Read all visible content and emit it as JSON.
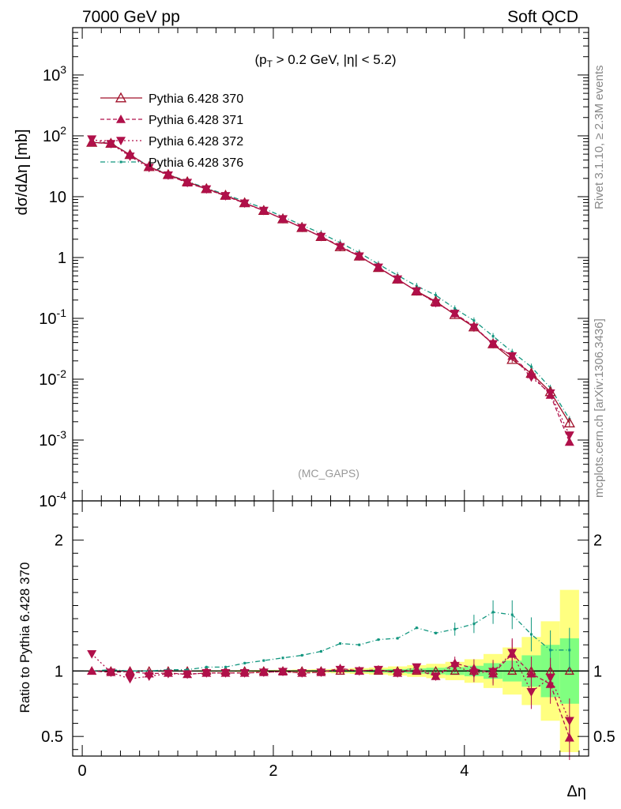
{
  "header": {
    "left": "7000 GeV pp",
    "right": "Soft QCD"
  },
  "side_labels": {
    "rivet": "Rivet 3.1.10, ≥ 2.3M events",
    "mcplots": "mcplots.cern.ch [arXiv:1306.3436]"
  },
  "colors": {
    "p370": "#a0102a",
    "p371": "#b0104a",
    "p372": "#b0104a",
    "p376": "#12967f",
    "band_outer": "#ffff80",
    "band_inner": "#80ff80"
  },
  "chart_data": [
    {
      "type": "line",
      "title": "(p_T > 0.2 GeV, |η| < 5.2)",
      "watermark": "(MC_GAPS)",
      "ylabel": "dσ/dΔη [mb]",
      "xlabel": "",
      "log_y": true,
      "xlim": [
        -0.1,
        5.3
      ],
      "ylim": [
        0.0001,
        6000
      ],
      "y_ticks": [
        "10^-4",
        "10^-3",
        "10^-2",
        "10^-1",
        "1",
        "10",
        "10^2",
        "10^3"
      ],
      "legend_position": "top-left",
      "x": [
        0.1,
        0.3,
        0.5,
        0.7,
        0.9,
        1.1,
        1.3,
        1.5,
        1.7,
        1.9,
        2.1,
        2.3,
        2.5,
        2.7,
        2.9,
        3.1,
        3.3,
        3.5,
        3.7,
        3.9,
        4.1,
        4.3,
        4.5,
        4.7,
        4.9,
        5.1
      ],
      "series": [
        {
          "name": "Pythia 6.428 370",
          "marker": "open-triangle-up",
          "line": "solid",
          "values": [
            78,
            75,
            49,
            31,
            23,
            17.5,
            13.5,
            10.5,
            7.9,
            5.9,
            4.3,
            3.1,
            2.2,
            1.5,
            1.05,
            0.68,
            0.44,
            0.28,
            0.19,
            0.115,
            0.072,
            0.038,
            0.021,
            0.0125,
            0.0062,
            0.0019
          ]
        },
        {
          "name": "Pythia 6.428 371",
          "marker": "filled-triangle-up",
          "line": "dashed",
          "values": [
            78,
            74,
            49,
            31,
            22.5,
            17,
            13.3,
            10.3,
            7.8,
            5.9,
            4.3,
            3.1,
            2.2,
            1.55,
            1.05,
            0.69,
            0.44,
            0.28,
            0.18,
            0.12,
            0.074,
            0.038,
            0.024,
            0.012,
            0.0055,
            0.00093
          ]
        },
        {
          "name": "Pythia 6.428 372",
          "marker": "filled-triangle-down",
          "line": "dotted",
          "values": [
            88,
            74,
            46,
            30,
            22.5,
            17,
            13.3,
            10.3,
            7.8,
            5.9,
            4.3,
            3.1,
            2.2,
            1.5,
            1.05,
            0.69,
            0.44,
            0.28,
            0.18,
            0.12,
            0.071,
            0.038,
            0.024,
            0.0108,
            0.0059,
            0.0012
          ]
        },
        {
          "name": "Pythia 6.428 376",
          "marker": "small-dot",
          "line": "dash-dot",
          "values": [
            78,
            76,
            49,
            31.5,
            23.3,
            17.8,
            13.9,
            10.8,
            8.4,
            6.4,
            4.7,
            3.4,
            2.5,
            1.75,
            1.2,
            0.78,
            0.51,
            0.34,
            0.24,
            0.145,
            0.092,
            0.051,
            0.028,
            0.016,
            0.0072,
            0.0022
          ]
        }
      ]
    },
    {
      "type": "line",
      "ylabel": "Ratio to Pythia 6.428 370",
      "xlabel": "Δη",
      "xlim": [
        -0.1,
        5.3
      ],
      "ylim": [
        0.35,
        2.3
      ],
      "x_ticks": [
        "0",
        "2",
        "4"
      ],
      "y_ticks": [
        "0.5",
        "1",
        "2"
      ],
      "x": [
        0.1,
        0.3,
        0.5,
        0.7,
        0.9,
        1.1,
        1.3,
        1.5,
        1.7,
        1.9,
        2.1,
        2.3,
        2.5,
        2.7,
        2.9,
        3.1,
        3.3,
        3.5,
        3.7,
        3.9,
        4.1,
        4.3,
        4.5,
        4.7,
        4.9,
        5.1
      ],
      "band": {
        "inner_half_width": [
          0.002,
          0.002,
          0.002,
          0.002,
          0.002,
          0.002,
          0.003,
          0.003,
          0.003,
          0.004,
          0.004,
          0.005,
          0.006,
          0.008,
          0.01,
          0.012,
          0.015,
          0.02,
          0.025,
          0.03,
          0.04,
          0.06,
          0.08,
          0.12,
          0.2,
          0.25
        ],
        "outer_half_width": [
          0.004,
          0.004,
          0.004,
          0.004,
          0.005,
          0.005,
          0.006,
          0.006,
          0.007,
          0.008,
          0.009,
          0.011,
          0.013,
          0.017,
          0.022,
          0.027,
          0.035,
          0.045,
          0.055,
          0.07,
          0.09,
          0.13,
          0.18,
          0.26,
          0.38,
          0.62
        ]
      },
      "series": [
        {
          "name": "Pythia 6.428 371",
          "values": [
            1.0,
            0.99,
            0.995,
            0.98,
            0.985,
            0.975,
            0.985,
            0.985,
            0.985,
            0.99,
            0.995,
            0.985,
            0.99,
            1.02,
            1.0,
            1.01,
            0.985,
            1.01,
            0.96,
            1.06,
            1.02,
            0.98,
            1.13,
            0.98,
            0.9,
            0.49
          ]
        },
        {
          "name": "Pythia 6.428 372",
          "values": [
            1.13,
            0.99,
            0.94,
            0.96,
            0.98,
            0.975,
            0.985,
            0.985,
            0.985,
            0.99,
            0.995,
            0.985,
            0.99,
            1.01,
            1.0,
            1.01,
            0.985,
            1.03,
            0.96,
            1.04,
            0.985,
            0.995,
            1.14,
            0.84,
            0.95,
            0.62
          ]
        },
        {
          "name": "Pythia 6.428 376",
          "values": [
            1.0,
            1.01,
            1.0,
            1.0,
            1.01,
            1.01,
            1.03,
            1.03,
            1.06,
            1.08,
            1.1,
            1.12,
            1.15,
            1.21,
            1.2,
            1.24,
            1.25,
            1.33,
            1.29,
            1.32,
            1.36,
            1.45,
            1.43,
            1.28,
            1.16,
            1.16
          ]
        }
      ]
    }
  ]
}
